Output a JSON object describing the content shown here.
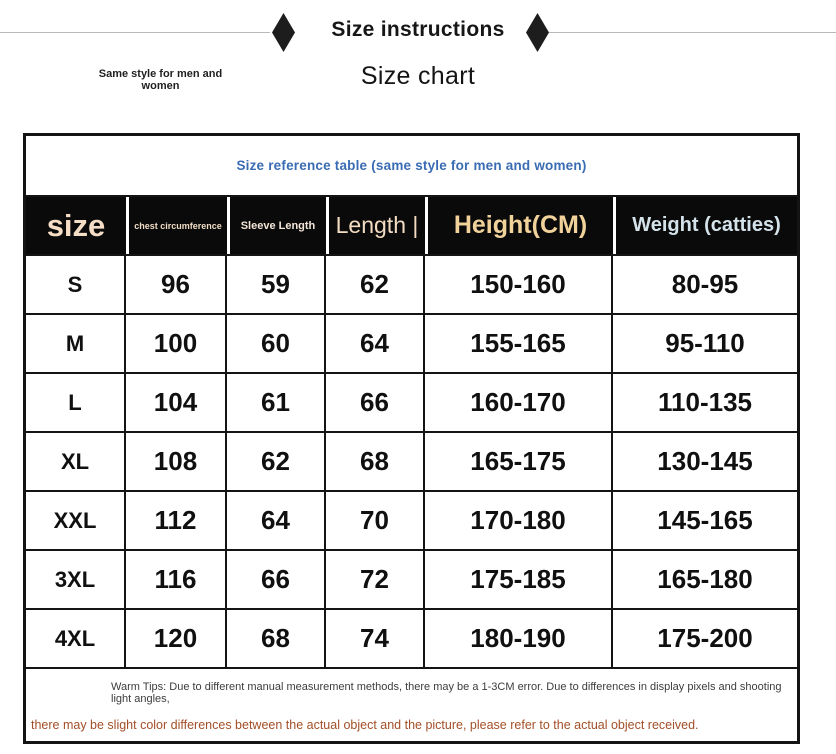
{
  "header": {
    "title": "Size instructions",
    "tagline": "Same style for men and women",
    "subtitle": "Size chart"
  },
  "table": {
    "caption": "Size reference table (same style for men and women)",
    "columns": [
      {
        "key": "size",
        "label": "size"
      },
      {
        "key": "chest",
        "label": "chest circumference"
      },
      {
        "key": "sleeve",
        "label": "Sleeve Length"
      },
      {
        "key": "length",
        "label": "Length |"
      },
      {
        "key": "height",
        "label": "Height(CM)"
      },
      {
        "key": "weight",
        "label": "Weight (catties)"
      }
    ],
    "rows": [
      {
        "size": "S",
        "chest": "96",
        "sleeve": "59",
        "length": "62",
        "height": "150-160",
        "weight": "80-95"
      },
      {
        "size": "M",
        "chest": "100",
        "sleeve": "60",
        "length": "64",
        "height": "155-165",
        "weight": "95-110"
      },
      {
        "size": "L",
        "chest": "104",
        "sleeve": "61",
        "length": "66",
        "height": "160-170",
        "weight": "110-135"
      },
      {
        "size": "XL",
        "chest": "108",
        "sleeve": "62",
        "length": "68",
        "height": "165-175",
        "weight": "130-145"
      },
      {
        "size": "XXL",
        "chest": "112",
        "sleeve": "64",
        "length": "70",
        "height": "170-180",
        "weight": "145-165"
      },
      {
        "size": "3XL",
        "chest": "116",
        "sleeve": "66",
        "length": "72",
        "height": "175-185",
        "weight": "165-180"
      },
      {
        "size": "4XL",
        "chest": "120",
        "sleeve": "68",
        "length": "74",
        "height": "180-190",
        "weight": "175-200"
      }
    ],
    "notes": {
      "line1": "Warm Tips: Due to different manual measurement methods, there may be a 1-3CM error. Due to differences in display pixels and shooting light angles,",
      "line2": "there may be slight color differences between the actual object and the picture, please refer to the actual object received."
    }
  },
  "colors": {
    "caption_blue": "#3a6cb3",
    "header_bg": "#0a0a0a",
    "header_text_cream": "#f5ddc6",
    "header_text_gold": "#f0d29a",
    "header_text_blue": "#d4e2ea",
    "note_red": "#a34f28",
    "border": "#141414"
  }
}
